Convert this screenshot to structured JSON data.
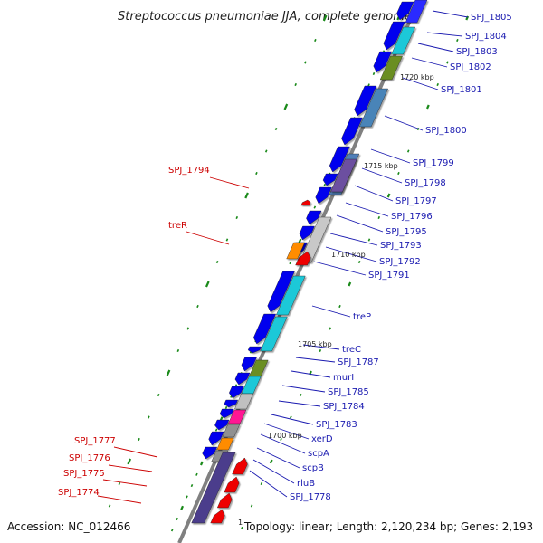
{
  "title": "Streptococcus pneumoniae JJA, complete genome",
  "footer": {
    "accession": "Accession: NC_012466",
    "one": "1",
    "summary": "Topology: linear; Length: 2,120,234 bp; Genes: 2,193"
  },
  "kbp_labels": [
    "1720 kbp",
    "1715 kbp",
    "1710 kbp",
    "1705 kbp",
    "1700 kbp"
  ],
  "colors": {
    "backbone": "#808080",
    "forward_gene": "#0000ee",
    "reverse_gene": "#ee0000",
    "label_blue": "#1a1ab0",
    "label_red": "#cc0000",
    "tick": "#1a8a1a"
  },
  "right_labels": [
    "SPJ_1805",
    "SPJ_1804",
    "SPJ_1803",
    "SPJ_1802",
    "SPJ_1801",
    "SPJ_1800",
    "SPJ_1799",
    "SPJ_1798",
    "SPJ_1797",
    "SPJ_1796",
    "SPJ_1795",
    "SPJ_1793",
    "SPJ_1792",
    "SPJ_1791",
    "treP",
    "treC",
    "SPJ_1787",
    "murI",
    "SPJ_1785",
    "SPJ_1784",
    "SPJ_1783",
    "xerD",
    "scpA",
    "scpB",
    "rluB",
    "SPJ_1778"
  ],
  "left_labels": [
    "SPJ_1794",
    "treR",
    "SPJ_1777",
    "SPJ_1776",
    "SPJ_1775",
    "SPJ_1774"
  ]
}
